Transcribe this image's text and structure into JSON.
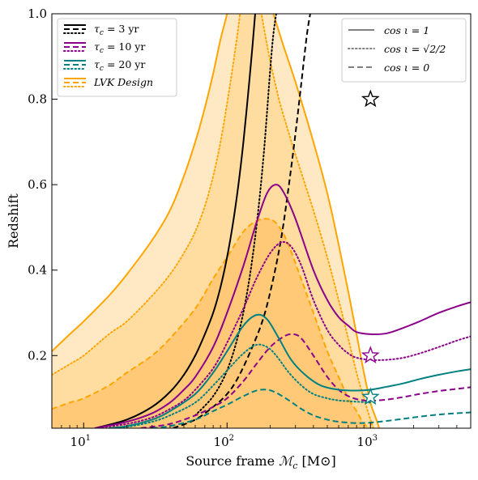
{
  "chart_data": {
    "type": "line",
    "title": "",
    "xlabel": "Source frame M_c [M⊙]",
    "xlabel_parts": {
      "prefix": "Source frame ",
      "symbol": "ℳ",
      "sub": "c",
      "suffix": " [M⊙]"
    },
    "ylabel": "Redshift",
    "x_scale": "log",
    "xlim": [
      6,
      5000
    ],
    "ylim": [
      0.03,
      1.0
    ],
    "x_ticks": [
      {
        "value": 10,
        "label": "10",
        "sup": "1"
      },
      {
        "value": 100,
        "label": "10",
        "sup": "2"
      },
      {
        "value": 1000,
        "label": "10",
        "sup": "3"
      }
    ],
    "y_ticks": [
      {
        "value": 0.2,
        "label": "0.2"
      },
      {
        "value": 0.4,
        "label": "0.4"
      },
      {
        "value": 0.6,
        "label": "0.6"
      },
      {
        "value": 0.8,
        "label": "0.8"
      },
      {
        "value": 1.0,
        "label": "1.0"
      }
    ],
    "grid": false,
    "colors": {
      "tau3": "#000000",
      "tau10": "#8b008b",
      "tau20": "#008080",
      "lvk": "#ffa500",
      "fill_outer": "#ffe9c4",
      "fill_mid": "#ffdca0",
      "fill_inner": "#ffc978"
    },
    "legend_left": {
      "placement": "top-left",
      "entries": [
        {
          "label": "τc = 3 yr",
          "parts": [
            "τ",
            "c",
            " = 3 yr"
          ],
          "color": "#000000"
        },
        {
          "label": "τc = 10 yr",
          "parts": [
            "τ",
            "c",
            " = 10 yr"
          ],
          "color": "#8b008b"
        },
        {
          "label": "τc = 20 yr",
          "parts": [
            "τ",
            "c",
            " = 20 yr"
          ],
          "color": "#008080"
        },
        {
          "label": "LVK Design",
          "parts": [
            "LVK Design",
            "",
            ""
          ],
          "color": "#ffa500"
        }
      ]
    },
    "legend_right": {
      "placement": "top-right",
      "entries": [
        {
          "label": "cos ι = 1",
          "style": "solid"
        },
        {
          "label": "cos ι = √2/2",
          "style": "dotted"
        },
        {
          "label": "cos ι = 0",
          "style": "dashed"
        }
      ]
    },
    "series": [
      {
        "group": "lvk",
        "style": "solid",
        "color": "#ffa500",
        "x": [
          6,
          8,
          10,
          15,
          20,
          30,
          40,
          50,
          60,
          70,
          80,
          90,
          100,
          105
        ],
        "y": [
          0.21,
          0.25,
          0.28,
          0.34,
          0.39,
          0.47,
          0.54,
          0.62,
          0.7,
          0.78,
          0.86,
          0.94,
          1.0,
          1.04
        ]
      },
      {
        "group": "lvk",
        "style": "solid",
        "color": "#ffa500",
        "x": [
          190,
          210,
          250,
          300,
          400,
          500,
          600,
          700,
          800,
          900,
          1000,
          1100,
          1150
        ],
        "y": [
          1.04,
          1.0,
          0.92,
          0.84,
          0.7,
          0.58,
          0.46,
          0.35,
          0.25,
          0.16,
          0.09,
          0.05,
          0.03
        ]
      },
      {
        "group": "lvk",
        "style": "dotted",
        "color": "#ffa500",
        "x": [
          6,
          8,
          10,
          15,
          20,
          30,
          40,
          50,
          60,
          70,
          80,
          90,
          100,
          110,
          120,
          125
        ],
        "y": [
          0.155,
          0.18,
          0.2,
          0.25,
          0.28,
          0.34,
          0.39,
          0.44,
          0.49,
          0.55,
          0.62,
          0.7,
          0.79,
          0.88,
          0.97,
          1.02
        ]
      },
      {
        "group": "lvk",
        "style": "dotted",
        "color": "#ffa500",
        "x": [
          170,
          180,
          200,
          230,
          270,
          300,
          400,
          500,
          600,
          700,
          800,
          900,
          1000,
          1050
        ],
        "y": [
          1.02,
          0.97,
          0.89,
          0.8,
          0.72,
          0.67,
          0.54,
          0.43,
          0.33,
          0.24,
          0.16,
          0.1,
          0.05,
          0.03
        ]
      },
      {
        "group": "lvk",
        "style": "dashed",
        "color": "#ffa500",
        "x": [
          6,
          8,
          10,
          15,
          20,
          30,
          40,
          60,
          80,
          100,
          130,
          160,
          190,
          220,
          260,
          320,
          400,
          500,
          600,
          700,
          800,
          900,
          1000
        ],
        "y": [
          0.075,
          0.09,
          0.1,
          0.13,
          0.16,
          0.2,
          0.24,
          0.31,
          0.38,
          0.43,
          0.49,
          0.515,
          0.52,
          0.51,
          0.47,
          0.39,
          0.3,
          0.21,
          0.15,
          0.1,
          0.07,
          0.04,
          0.03
        ]
      },
      {
        "group": "tau3",
        "style": "solid",
        "color": "#000000",
        "x": [
          12,
          20,
          30,
          40,
          50,
          60,
          70,
          80,
          90,
          100,
          110,
          120,
          130,
          140,
          150,
          157
        ],
        "y": [
          0.03,
          0.05,
          0.08,
          0.115,
          0.155,
          0.2,
          0.25,
          0.3,
          0.36,
          0.43,
          0.51,
          0.6,
          0.7,
          0.81,
          0.92,
          1.0
        ]
      },
      {
        "group": "tau3",
        "style": "dotted",
        "color": "#000000",
        "x": [
          60,
          80,
          100,
          120,
          140,
          160,
          180,
          200,
          210,
          220
        ],
        "y": [
          0.06,
          0.105,
          0.165,
          0.25,
          0.36,
          0.5,
          0.67,
          0.87,
          0.95,
          1.0
        ]
      },
      {
        "group": "tau3",
        "style": "dashed",
        "color": "#000000",
        "x": [
          42,
          60,
          80,
          100,
          120,
          150,
          180,
          210,
          240,
          270,
          300,
          330,
          360,
          380
        ],
        "y": [
          0.03,
          0.05,
          0.08,
          0.11,
          0.15,
          0.22,
          0.29,
          0.38,
          0.48,
          0.6,
          0.72,
          0.84,
          0.95,
          1.0
        ]
      },
      {
        "group": "tau10",
        "style": "solid",
        "color": "#8b008b",
        "x": [
          12,
          20,
          30,
          40,
          50,
          60,
          80,
          100,
          130,
          160,
          190,
          220,
          250,
          300,
          400,
          500,
          600,
          700,
          800,
          1000,
          1300,
          1700,
          2200,
          3000,
          4000,
          5000
        ],
        "y": [
          0.03,
          0.045,
          0.065,
          0.09,
          0.12,
          0.15,
          0.22,
          0.3,
          0.41,
          0.51,
          0.58,
          0.6,
          0.58,
          0.52,
          0.4,
          0.33,
          0.29,
          0.27,
          0.255,
          0.25,
          0.252,
          0.265,
          0.28,
          0.3,
          0.315,
          0.325
        ]
      },
      {
        "group": "tau10",
        "style": "dotted",
        "color": "#8b008b",
        "x": [
          12,
          20,
          30,
          40,
          50,
          60,
          80,
          100,
          130,
          160,
          200,
          240,
          280,
          330,
          400,
          500,
          600,
          700,
          800,
          1000,
          1300,
          1700,
          2200,
          3000,
          4000,
          5000
        ],
        "y": [
          0.03,
          0.04,
          0.055,
          0.075,
          0.095,
          0.12,
          0.17,
          0.23,
          0.31,
          0.38,
          0.44,
          0.465,
          0.455,
          0.41,
          0.33,
          0.26,
          0.225,
          0.205,
          0.195,
          0.19,
          0.19,
          0.195,
          0.205,
          0.22,
          0.235,
          0.245
        ]
      },
      {
        "group": "tau10",
        "style": "dashed",
        "color": "#8b008b",
        "x": [
          25,
          40,
          60,
          80,
          100,
          130,
          160,
          200,
          250,
          290,
          330,
          400,
          500,
          600,
          700,
          800,
          900,
          1000,
          1300,
          1700,
          2200,
          3000,
          4000,
          5000
        ],
        "y": [
          0.03,
          0.04,
          0.06,
          0.08,
          0.1,
          0.14,
          0.18,
          0.22,
          0.245,
          0.25,
          0.24,
          0.2,
          0.15,
          0.12,
          0.105,
          0.098,
          0.095,
          0.094,
          0.097,
          0.103,
          0.11,
          0.117,
          0.122,
          0.126
        ]
      },
      {
        "group": "tau20",
        "style": "solid",
        "color": "#008080",
        "x": [
          15,
          20,
          30,
          40,
          60,
          80,
          100,
          130,
          160,
          190,
          230,
          280,
          350,
          450,
          600,
          800,
          1000,
          1300,
          1700,
          2200,
          3000,
          4000,
          5000
        ],
        "y": [
          0.03,
          0.035,
          0.05,
          0.07,
          0.11,
          0.16,
          0.21,
          0.27,
          0.295,
          0.285,
          0.24,
          0.19,
          0.155,
          0.13,
          0.12,
          0.118,
          0.12,
          0.127,
          0.135,
          0.145,
          0.155,
          0.163,
          0.168
        ]
      },
      {
        "group": "tau20",
        "style": "dotted",
        "color": "#008080",
        "x": [
          15,
          20,
          30,
          40,
          60,
          80,
          100,
          130,
          160,
          190,
          220,
          270,
          330,
          400,
          500,
          600,
          800,
          1000
        ],
        "y": [
          0.03,
          0.033,
          0.045,
          0.06,
          0.09,
          0.13,
          0.165,
          0.205,
          0.225,
          0.22,
          0.2,
          0.16,
          0.13,
          0.11,
          0.1,
          0.095,
          0.092,
          0.09
        ]
      },
      {
        "group": "tau20",
        "style": "dashed",
        "color": "#008080",
        "x": [
          30,
          40,
          60,
          80,
          100,
          130,
          160,
          190,
          220,
          270,
          330,
          400,
          500,
          600,
          800,
          1000,
          1300,
          1700,
          2200,
          3000,
          4000,
          5000
        ],
        "y": [
          0.03,
          0.035,
          0.05,
          0.07,
          0.085,
          0.105,
          0.118,
          0.12,
          0.113,
          0.095,
          0.075,
          0.06,
          0.05,
          0.045,
          0.042,
          0.043,
          0.047,
          0.052,
          0.057,
          0.062,
          0.065,
          0.067
        ]
      }
    ],
    "bands": [
      {
        "name": "outer",
        "color": "#ffe9c4",
        "upper": [
          [
            6,
            0.21
          ],
          [
            8,
            0.25
          ],
          [
            10,
            0.28
          ],
          [
            15,
            0.34
          ],
          [
            20,
            0.39
          ],
          [
            30,
            0.47
          ],
          [
            40,
            0.54
          ],
          [
            50,
            0.62
          ],
          [
            60,
            0.7
          ],
          [
            70,
            0.78
          ],
          [
            80,
            0.86
          ],
          [
            90,
            0.94
          ],
          [
            100,
            1.0
          ],
          [
            105,
            1.04
          ],
          [
            190,
            1.04
          ],
          [
            210,
            1.0
          ],
          [
            250,
            0.92
          ],
          [
            300,
            0.84
          ],
          [
            400,
            0.7
          ],
          [
            500,
            0.58
          ],
          [
            600,
            0.46
          ],
          [
            700,
            0.35
          ],
          [
            800,
            0.25
          ],
          [
            900,
            0.16
          ],
          [
            1000,
            0.09
          ],
          [
            1100,
            0.05
          ],
          [
            1150,
            0.03
          ]
        ]
      },
      {
        "name": "middle",
        "color": "#ffdca0",
        "upper": [
          [
            6,
            0.155
          ],
          [
            8,
            0.18
          ],
          [
            10,
            0.2
          ],
          [
            15,
            0.25
          ],
          [
            20,
            0.28
          ],
          [
            30,
            0.34
          ],
          [
            40,
            0.39
          ],
          [
            50,
            0.44
          ],
          [
            60,
            0.49
          ],
          [
            70,
            0.55
          ],
          [
            80,
            0.62
          ],
          [
            90,
            0.7
          ],
          [
            100,
            0.79
          ],
          [
            110,
            0.88
          ],
          [
            120,
            0.97
          ],
          [
            125,
            1.02
          ],
          [
            170,
            1.02
          ],
          [
            180,
            0.97
          ],
          [
            200,
            0.89
          ],
          [
            230,
            0.8
          ],
          [
            270,
            0.72
          ],
          [
            300,
            0.67
          ],
          [
            400,
            0.54
          ],
          [
            500,
            0.43
          ],
          [
            600,
            0.33
          ],
          [
            700,
            0.24
          ],
          [
            800,
            0.16
          ],
          [
            900,
            0.1
          ],
          [
            1000,
            0.05
          ],
          [
            1050,
            0.03
          ]
        ]
      },
      {
        "name": "inner",
        "color": "#ffc978",
        "upper": [
          [
            6,
            0.075
          ],
          [
            8,
            0.09
          ],
          [
            10,
            0.1
          ],
          [
            15,
            0.13
          ],
          [
            20,
            0.16
          ],
          [
            30,
            0.2
          ],
          [
            40,
            0.24
          ],
          [
            60,
            0.31
          ],
          [
            80,
            0.38
          ],
          [
            100,
            0.43
          ],
          [
            130,
            0.49
          ],
          [
            160,
            0.515
          ],
          [
            190,
            0.52
          ],
          [
            220,
            0.51
          ],
          [
            260,
            0.47
          ],
          [
            320,
            0.39
          ],
          [
            400,
            0.3
          ],
          [
            500,
            0.21
          ],
          [
            600,
            0.15
          ],
          [
            700,
            0.1
          ],
          [
            800,
            0.07
          ],
          [
            900,
            0.04
          ],
          [
            1000,
            0.03
          ]
        ]
      }
    ],
    "markers": [
      {
        "x": 1000,
        "y": 0.8,
        "color": "#000000",
        "shape": "star"
      },
      {
        "x": 1000,
        "y": 0.2,
        "color": "#8b008b",
        "shape": "star"
      },
      {
        "x": 1000,
        "y": 0.103,
        "color": "#008080",
        "shape": "star"
      }
    ]
  }
}
